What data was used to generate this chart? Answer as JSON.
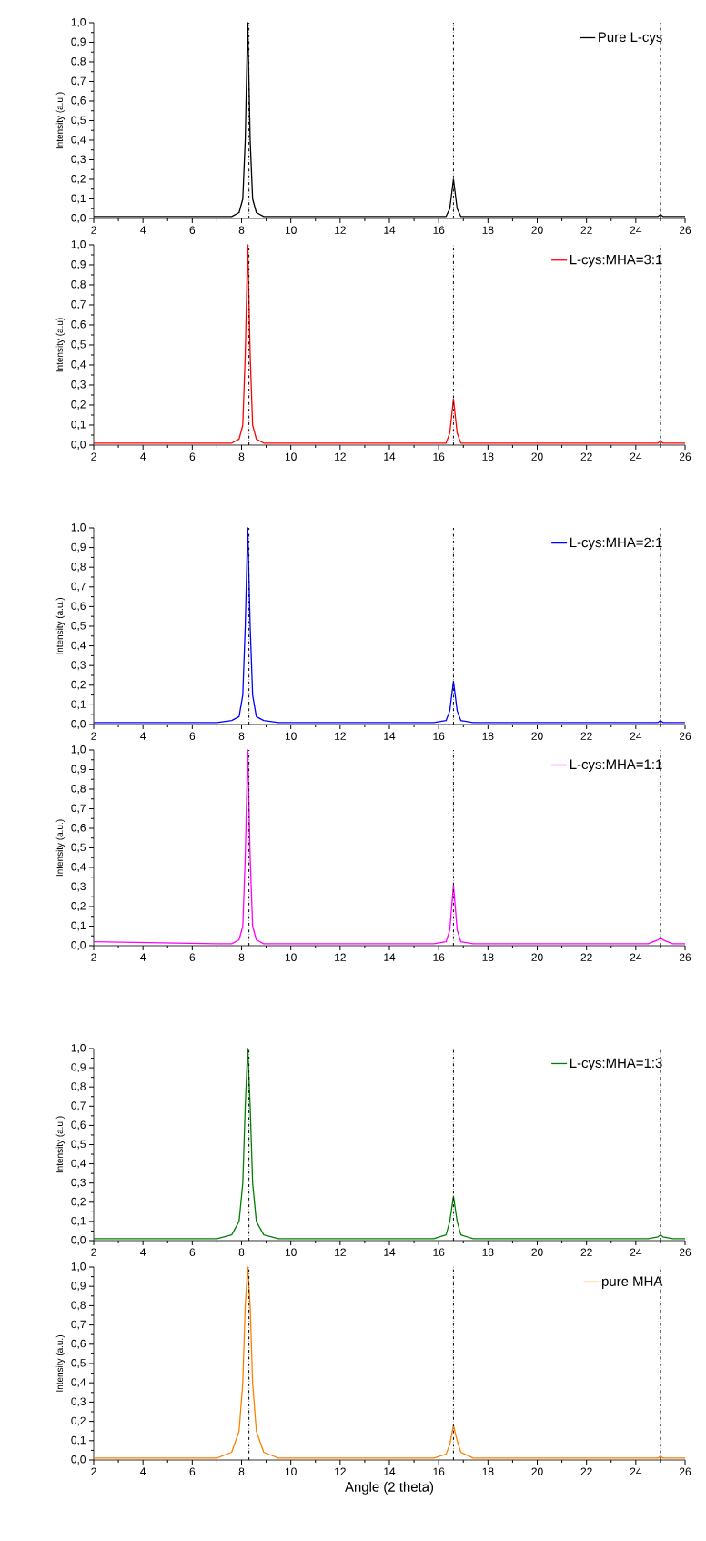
{
  "chart_data": [
    {
      "type": "line",
      "ylabel": "Intensity (a.u.)",
      "xlim": [
        2,
        26
      ],
      "ylim": [
        0,
        1
      ],
      "xticks": [
        2,
        4,
        6,
        8,
        10,
        12,
        14,
        16,
        18,
        20,
        22,
        24,
        26
      ],
      "yticks": [
        {
          "value": 0,
          "label": "0,0"
        },
        {
          "value": 0.1,
          "label": "0,1"
        },
        {
          "value": 0.2,
          "label": "0,2"
        },
        {
          "value": 0.3,
          "label": "0,3"
        },
        {
          "value": 0.4,
          "label": "0,4"
        },
        {
          "value": 0.5,
          "label": "0,5"
        },
        {
          "value": 0.6,
          "label": "0,6"
        },
        {
          "value": 0.7,
          "label": "0,7"
        },
        {
          "value": 0.8,
          "label": "0,8"
        },
        {
          "value": 0.9,
          "label": "0,9"
        },
        {
          "value": 1,
          "label": "1,0"
        }
      ],
      "legend": "top right",
      "grid": false,
      "x": [
        2,
        7.0,
        7.6,
        7.9,
        8.05,
        8.15,
        8.25,
        8.35,
        8.45,
        8.6,
        8.9,
        9.5,
        15.8,
        16.3,
        16.45,
        16.6,
        16.75,
        16.9,
        17.4,
        24.5,
        24.9,
        25.0,
        25.1,
        25.5,
        26
      ],
      "series": [
        {
          "name": "Pure L-cys",
          "color": "#000000",
          "values": [
            0.01,
            0.01,
            0.01,
            0.03,
            0.1,
            0.4,
            1.0,
            0.4,
            0.1,
            0.03,
            0.01,
            0.01,
            0.01,
            0.01,
            0.05,
            0.2,
            0.05,
            0.01,
            0.01,
            0.01,
            0.01,
            0.02,
            0.01,
            0.01,
            0.01
          ]
        }
      ],
      "ref_lines": [
        {
          "axis": "x",
          "value": 8.3,
          "color": "#000000",
          "line_style": "dashdot"
        },
        {
          "axis": "x",
          "value": 16.6,
          "color": "#000000",
          "line_style": "dashdot"
        },
        {
          "axis": "x",
          "value": 25.0,
          "color": "#000000",
          "line_style": "dashdot"
        }
      ]
    },
    {
      "type": "line",
      "ylabel": "Intensity (a.u)",
      "xlim": [
        2,
        26
      ],
      "ylim": [
        0,
        1
      ],
      "xticks": [
        2,
        4,
        6,
        8,
        10,
        12,
        14,
        16,
        18,
        20,
        22,
        24,
        26
      ],
      "yticks": [
        {
          "value": 0,
          "label": "0,0"
        },
        {
          "value": 0.1,
          "label": "0,1"
        },
        {
          "value": 0.2,
          "label": "0,2"
        },
        {
          "value": 0.3,
          "label": "0,3"
        },
        {
          "value": 0.4,
          "label": "0,4"
        },
        {
          "value": 0.5,
          "label": "0,5"
        },
        {
          "value": 0.6,
          "label": "0,6"
        },
        {
          "value": 0.7,
          "label": "0,7"
        },
        {
          "value": 0.8,
          "label": "0,8"
        },
        {
          "value": 0.9,
          "label": "0,9"
        },
        {
          "value": 1,
          "label": "1,0"
        }
      ],
      "legend": "top right",
      "grid": false,
      "x": [
        2,
        7.0,
        7.6,
        7.9,
        8.05,
        8.15,
        8.25,
        8.35,
        8.45,
        8.6,
        8.9,
        9.5,
        15.8,
        16.3,
        16.45,
        16.6,
        16.75,
        16.9,
        17.4,
        24.5,
        24.9,
        25.0,
        25.1,
        25.5,
        26
      ],
      "series": [
        {
          "name": "L-cys:MHA=3:1",
          "color": "#ff0000",
          "values": [
            0.01,
            0.01,
            0.01,
            0.03,
            0.1,
            0.45,
            1.0,
            0.45,
            0.1,
            0.03,
            0.01,
            0.01,
            0.01,
            0.01,
            0.06,
            0.23,
            0.06,
            0.01,
            0.01,
            0.01,
            0.01,
            0.02,
            0.01,
            0.01,
            0.01
          ]
        }
      ],
      "ref_lines": [
        {
          "axis": "x",
          "value": 8.3,
          "color": "#000000",
          "line_style": "dashdot"
        },
        {
          "axis": "x",
          "value": 16.6,
          "color": "#000000",
          "line_style": "dashdot"
        },
        {
          "axis": "x",
          "value": 25.0,
          "color": "#000000",
          "line_style": "dashdot"
        }
      ]
    },
    {
      "type": "line",
      "ylabel": "Intensity (a.u.)",
      "xlim": [
        2,
        26
      ],
      "ylim": [
        0,
        1
      ],
      "xticks": [
        2,
        4,
        6,
        8,
        10,
        12,
        14,
        16,
        18,
        20,
        22,
        24,
        26
      ],
      "yticks": [
        {
          "value": 0,
          "label": "0,0"
        },
        {
          "value": 0.1,
          "label": "0,1"
        },
        {
          "value": 0.2,
          "label": "0,2"
        },
        {
          "value": 0.3,
          "label": "0,3"
        },
        {
          "value": 0.4,
          "label": "0,4"
        },
        {
          "value": 0.5,
          "label": "0,5"
        },
        {
          "value": 0.6,
          "label": "0,6"
        },
        {
          "value": 0.7,
          "label": "0,7"
        },
        {
          "value": 0.8,
          "label": "0,8"
        },
        {
          "value": 0.9,
          "label": "0,9"
        },
        {
          "value": 1,
          "label": "1,0"
        }
      ],
      "legend": "top right",
      "grid": false,
      "x": [
        2,
        7.0,
        7.6,
        7.9,
        8.05,
        8.15,
        8.25,
        8.35,
        8.45,
        8.6,
        8.9,
        9.5,
        15.8,
        16.3,
        16.45,
        16.6,
        16.75,
        16.9,
        17.4,
        24.5,
        24.9,
        25.0,
        25.1,
        25.5,
        26
      ],
      "series": [
        {
          "name": "L-cys:MHA=2:1",
          "color": "#0000ff",
          "values": [
            0.01,
            0.01,
            0.02,
            0.04,
            0.15,
            0.5,
            1.0,
            0.5,
            0.15,
            0.04,
            0.02,
            0.01,
            0.01,
            0.02,
            0.07,
            0.22,
            0.07,
            0.02,
            0.01,
            0.01,
            0.01,
            0.02,
            0.01,
            0.01,
            0.01
          ]
        }
      ],
      "ref_lines": [
        {
          "axis": "x",
          "value": 8.3,
          "color": "#000000",
          "line_style": "dashdot"
        },
        {
          "axis": "x",
          "value": 16.6,
          "color": "#000000",
          "line_style": "dashdot"
        },
        {
          "axis": "x",
          "value": 25.0,
          "color": "#000000",
          "line_style": "dashdot"
        }
      ]
    },
    {
      "type": "line",
      "ylabel": "Intensity (a.u.)",
      "xlim": [
        2,
        26
      ],
      "ylim": [
        0,
        1
      ],
      "xticks": [
        2,
        4,
        6,
        8,
        10,
        12,
        14,
        16,
        18,
        20,
        22,
        24,
        26
      ],
      "yticks": [
        {
          "value": 0,
          "label": "0,0"
        },
        {
          "value": 0.1,
          "label": "0,1"
        },
        {
          "value": 0.2,
          "label": "0,2"
        },
        {
          "value": 0.3,
          "label": "0,3"
        },
        {
          "value": 0.4,
          "label": "0,4"
        },
        {
          "value": 0.5,
          "label": "0,5"
        },
        {
          "value": 0.6,
          "label": "0,6"
        },
        {
          "value": 0.7,
          "label": "0,7"
        },
        {
          "value": 0.8,
          "label": "0,8"
        },
        {
          "value": 0.9,
          "label": "0,9"
        },
        {
          "value": 1,
          "label": "1,0"
        }
      ],
      "legend": "top right",
      "grid": false,
      "x": [
        2,
        7.0,
        7.6,
        7.9,
        8.05,
        8.15,
        8.25,
        8.35,
        8.45,
        8.6,
        8.9,
        9.5,
        15.8,
        16.3,
        16.45,
        16.6,
        16.75,
        16.9,
        17.4,
        24.5,
        24.9,
        25.0,
        25.1,
        25.5,
        26
      ],
      "series": [
        {
          "name": "L-cys:MHA=1:1",
          "color": "#ff00ff",
          "values": [
            0.02,
            0.01,
            0.01,
            0.03,
            0.1,
            0.45,
            1.0,
            0.45,
            0.1,
            0.03,
            0.01,
            0.01,
            0.01,
            0.02,
            0.08,
            0.31,
            0.08,
            0.02,
            0.01,
            0.01,
            0.03,
            0.04,
            0.03,
            0.01,
            0.01
          ]
        }
      ],
      "ref_lines": [
        {
          "axis": "x",
          "value": 8.3,
          "color": "#000000",
          "line_style": "dashdot"
        },
        {
          "axis": "x",
          "value": 16.6,
          "color": "#000000",
          "line_style": "dashdot"
        },
        {
          "axis": "x",
          "value": 25.0,
          "color": "#000000",
          "line_style": "dashdot"
        }
      ]
    },
    {
      "type": "line",
      "ylabel": "Intensity (a.u.)",
      "xlim": [
        2,
        26
      ],
      "ylim": [
        0,
        1
      ],
      "xticks": [
        2,
        4,
        6,
        8,
        10,
        12,
        14,
        16,
        18,
        20,
        22,
        24,
        26
      ],
      "yticks": [
        {
          "value": 0,
          "label": "0,0"
        },
        {
          "value": 0.1,
          "label": "0,1"
        },
        {
          "value": 0.2,
          "label": "0,2"
        },
        {
          "value": 0.3,
          "label": "0,3"
        },
        {
          "value": 0.4,
          "label": "0,4"
        },
        {
          "value": 0.5,
          "label": "0,5"
        },
        {
          "value": 0.6,
          "label": "0,6"
        },
        {
          "value": 0.7,
          "label": "0,7"
        },
        {
          "value": 0.8,
          "label": "0,8"
        },
        {
          "value": 0.9,
          "label": "0,9"
        },
        {
          "value": 1,
          "label": "1,0"
        }
      ],
      "legend": "top right",
      "grid": false,
      "x": [
        2,
        7.0,
        7.6,
        7.9,
        8.05,
        8.15,
        8.25,
        8.35,
        8.45,
        8.6,
        8.9,
        9.5,
        15.8,
        16.3,
        16.45,
        16.6,
        16.75,
        16.9,
        17.4,
        24.5,
        24.9,
        25.0,
        25.1,
        25.5,
        26
      ],
      "series": [
        {
          "name": "L-cys:MHA=1:3",
          "color": "#008000",
          "values": [
            0.01,
            0.01,
            0.03,
            0.1,
            0.3,
            0.7,
            1.0,
            0.7,
            0.3,
            0.1,
            0.03,
            0.01,
            0.01,
            0.03,
            0.1,
            0.23,
            0.1,
            0.03,
            0.01,
            0.01,
            0.02,
            0.03,
            0.02,
            0.01,
            0.01
          ]
        }
      ],
      "ref_lines": [
        {
          "axis": "x",
          "value": 8.3,
          "color": "#000000",
          "line_style": "dashdot"
        },
        {
          "axis": "x",
          "value": 16.6,
          "color": "#000000",
          "line_style": "dashdot"
        },
        {
          "axis": "x",
          "value": 25.0,
          "color": "#000000",
          "line_style": "dashdot"
        }
      ]
    },
    {
      "type": "line",
      "xlabel": "Angle (2 theta)",
      "ylabel": "Intensity (a.u.)",
      "xlim": [
        2,
        26
      ],
      "ylim": [
        0,
        1
      ],
      "xticks": [
        2,
        4,
        6,
        8,
        10,
        12,
        14,
        16,
        18,
        20,
        22,
        24,
        26
      ],
      "yticks": [
        {
          "value": 0,
          "label": "0,0"
        },
        {
          "value": 0.1,
          "label": "0,1"
        },
        {
          "value": 0.2,
          "label": "0,2"
        },
        {
          "value": 0.3,
          "label": "0,3"
        },
        {
          "value": 0.4,
          "label": "0,4"
        },
        {
          "value": 0.5,
          "label": "0,5"
        },
        {
          "value": 0.6,
          "label": "0,6"
        },
        {
          "value": 0.7,
          "label": "0,7"
        },
        {
          "value": 0.8,
          "label": "0,8"
        },
        {
          "value": 0.9,
          "label": "0,9"
        },
        {
          "value": 1,
          "label": "1,0"
        }
      ],
      "legend": "top right",
      "grid": false,
      "x": [
        2,
        7.0,
        7.6,
        7.9,
        8.05,
        8.15,
        8.25,
        8.35,
        8.45,
        8.6,
        8.9,
        9.5,
        15.8,
        16.3,
        16.45,
        16.6,
        16.75,
        16.9,
        17.4,
        24.5,
        24.9,
        25.0,
        25.1,
        25.5,
        26
      ],
      "series": [
        {
          "name": "pure MHA",
          "color": "#ff8000",
          "values": [
            0.01,
            0.01,
            0.04,
            0.15,
            0.4,
            0.8,
            1.0,
            0.8,
            0.4,
            0.15,
            0.04,
            0.01,
            0.01,
            0.03,
            0.08,
            0.18,
            0.1,
            0.04,
            0.01,
            0.01,
            0.01,
            0.02,
            0.01,
            0.01,
            0.01
          ]
        }
      ],
      "ref_lines": [
        {
          "axis": "x",
          "value": 8.3,
          "color": "#000000",
          "line_style": "dashdot"
        },
        {
          "axis": "x",
          "value": 16.6,
          "color": "#000000",
          "line_style": "dashdot"
        },
        {
          "axis": "x",
          "value": 25.0,
          "color": "#000000",
          "line_style": "dashdot"
        }
      ]
    }
  ]
}
